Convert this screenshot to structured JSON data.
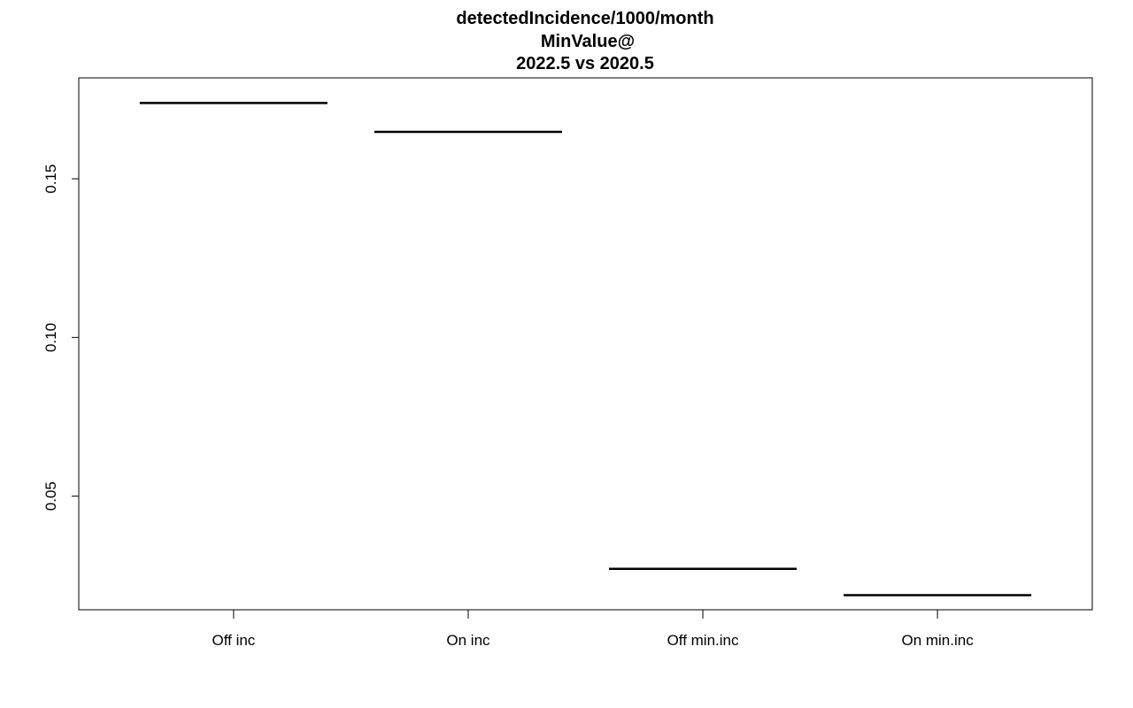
{
  "chart_data": {
    "type": "bar",
    "title_lines": [
      "detectedIncidence/1000/month",
      "MinValue@",
      "2022.5 vs 2020.5"
    ],
    "xlabel": "",
    "ylabel": "",
    "categories": [
      "Off inc",
      "On inc",
      "Off min.inc",
      "On min.inc"
    ],
    "values": [
      0.1739,
      0.1648,
      0.0271,
      0.0188
    ],
    "ylim": [
      0.0142,
      0.1818
    ],
    "yticks": [
      0.05,
      0.1,
      0.15
    ],
    "ytick_labels": [
      "0.05",
      "0.10",
      "0.15"
    ],
    "grid": false,
    "mark_style": "horizontal segment",
    "colors": {
      "line": "#000000",
      "axis": "#000000",
      "background": "#ffffff"
    }
  }
}
